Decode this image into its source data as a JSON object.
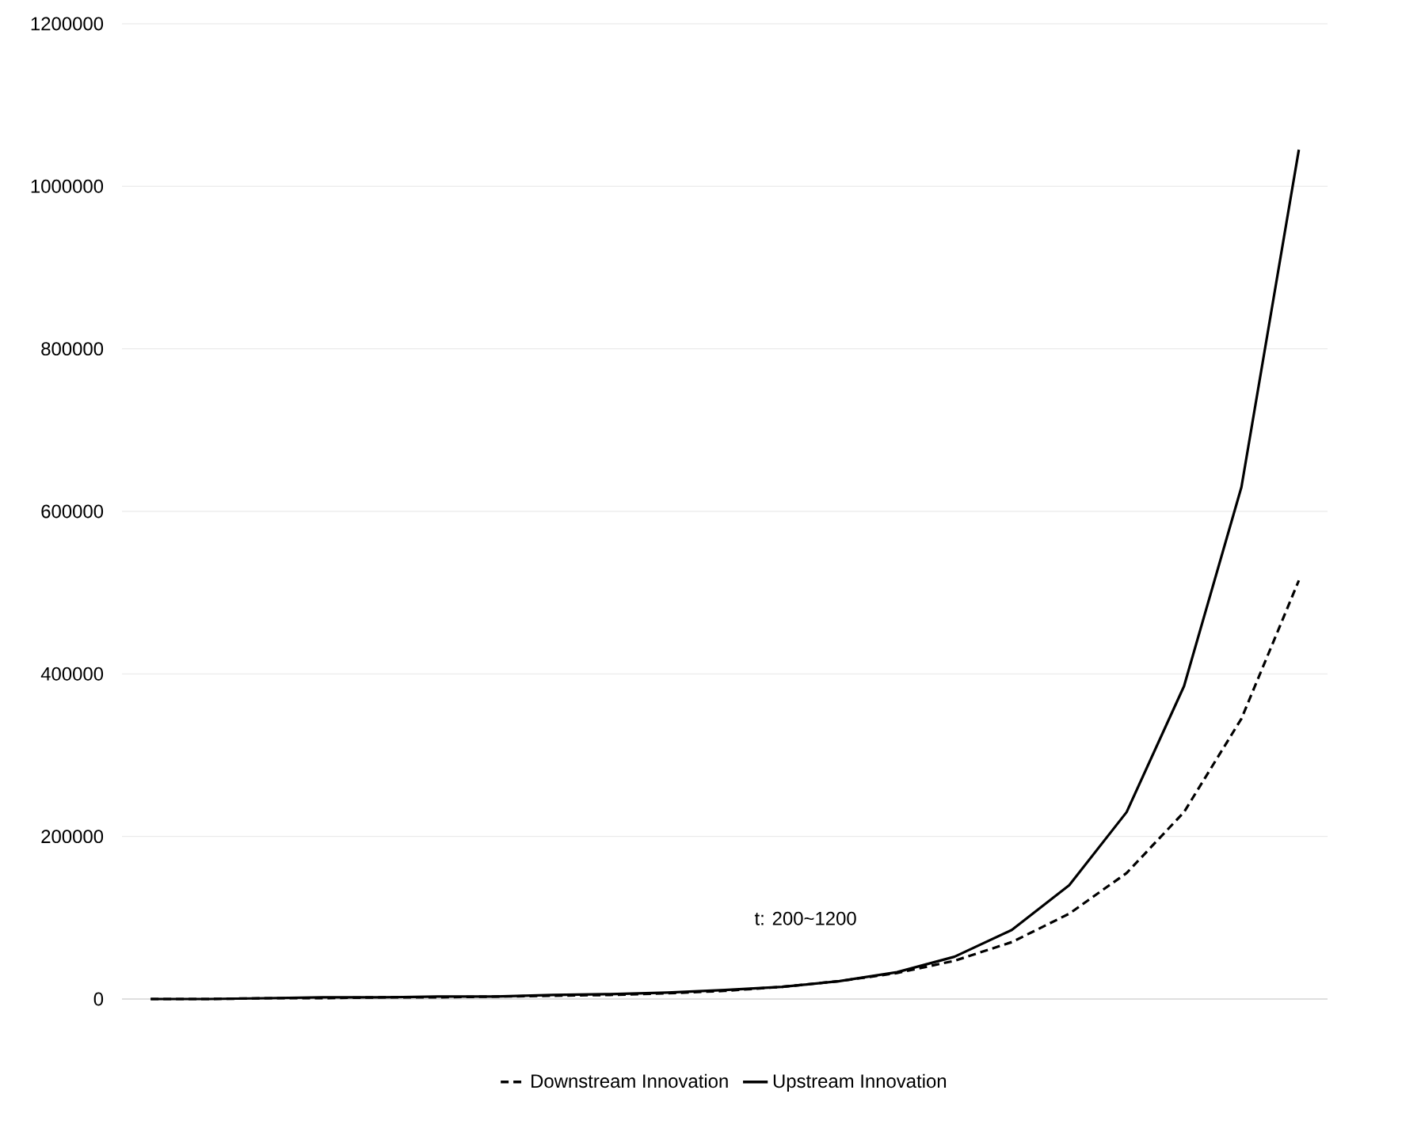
{
  "chart_data": {
    "type": "line",
    "categories": [
      null,
      null,
      null,
      null,
      null,
      null,
      null,
      null,
      null,
      null,
      null,
      null,
      null,
      null,
      null,
      null,
      null,
      null,
      null,
      null,
      null
    ],
    "series": [
      {
        "name": "Downstream Innovation",
        "color": "#000000",
        "line_style": "dashed",
        "values": [
          0,
          0,
          1000,
          1000,
          2000,
          2000,
          3000,
          4000,
          5000,
          7000,
          10000,
          15000,
          22000,
          32000,
          47000,
          70000,
          105000,
          155000,
          230000,
          345000,
          515000
        ]
      },
      {
        "name": "Upstream Innovation",
        "color": "#000000",
        "line_style": "solid",
        "values": [
          0,
          0,
          1000,
          2000,
          2000,
          3000,
          3000,
          5000,
          6000,
          8000,
          11000,
          15000,
          22000,
          33000,
          52000,
          85000,
          140000,
          230000,
          385000,
          630000,
          1045000
        ]
      }
    ],
    "ylim": [
      0,
      1200000
    ],
    "yticks": [
      0,
      200000,
      400000,
      600000,
      800000,
      1000000,
      1200000
    ],
    "grid": "y",
    "legend": "bottom",
    "marker": "none",
    "annotations": [
      "t: 200~1200"
    ]
  }
}
